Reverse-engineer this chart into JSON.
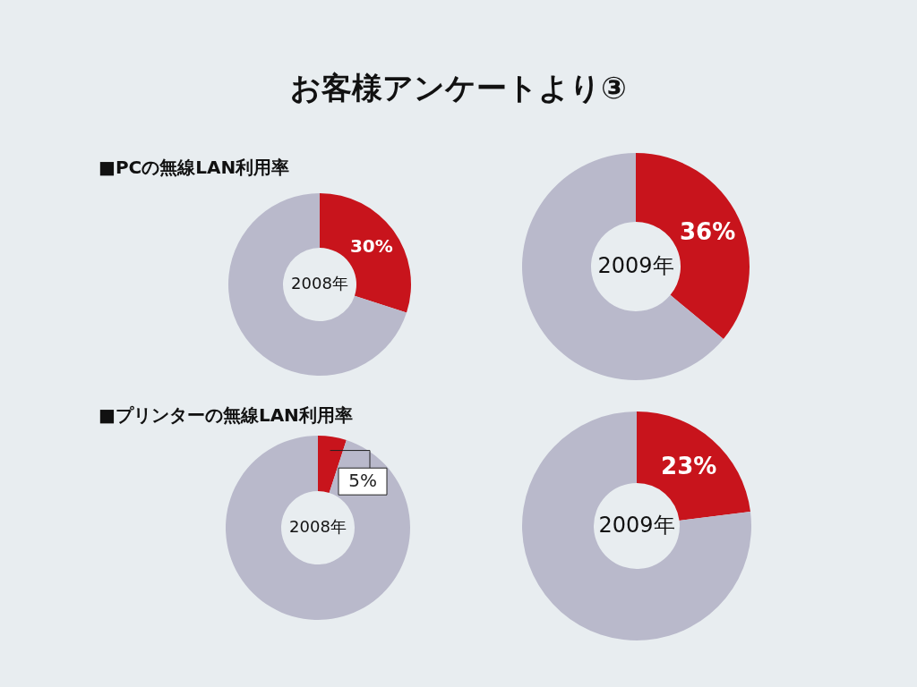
{
  "chart_data": [
    {
      "type": "other",
      "title": "お客様アンケートより③"
    },
    {
      "type": "donut",
      "title": "■PCの無線LAN利用率",
      "categories": [
        null,
        null
      ],
      "values": [
        30,
        70
      ],
      "colors": [
        "#c8141c",
        "#b9b9cb"
      ],
      "value_labels": [
        "30%",
        null
      ],
      "annotations": [
        "2008年"
      ]
    },
    {
      "type": "donut",
      "categories": [
        null,
        null
      ],
      "values": [
        36,
        64
      ],
      "colors": [
        "#c8141c",
        "#b9b9cb"
      ],
      "value_labels": [
        "36%",
        null
      ],
      "annotations": [
        "2009年"
      ]
    },
    {
      "type": "donut",
      "title": "■プリンターの無線LAN利用率",
      "categories": [
        null,
        null
      ],
      "values": [
        5,
        95
      ],
      "colors": [
        "#c8141c",
        "#b9b9cb"
      ],
      "value_labels": [
        "5%",
        null
      ],
      "annotations": [
        "2008年"
      ]
    },
    {
      "type": "donut",
      "categories": [
        null,
        null
      ],
      "values": [
        23,
        77
      ],
      "colors": [
        "#c8141c",
        "#b9b9cb"
      ],
      "value_labels": [
        "23%",
        null
      ],
      "annotations": [
        "2009年"
      ]
    }
  ]
}
